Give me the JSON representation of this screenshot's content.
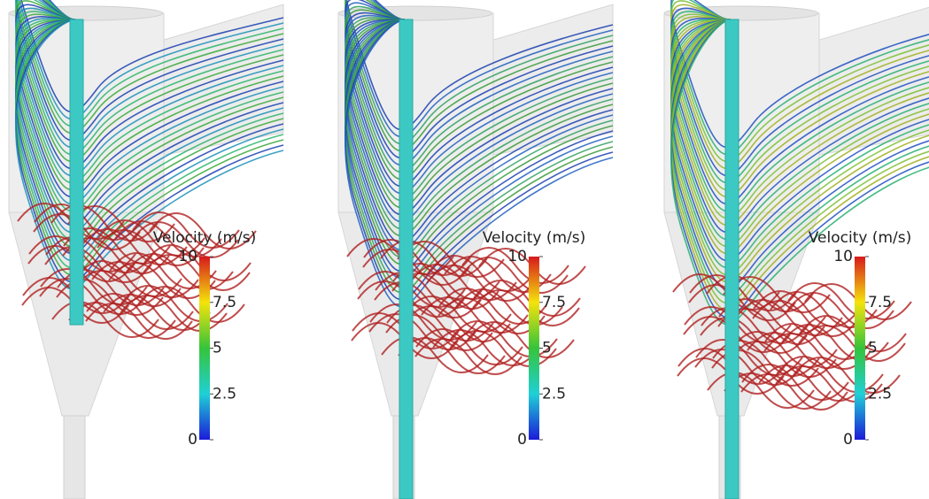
{
  "panels": [
    {
      "legend": {
        "title": "Velocity (m/s)",
        "ticks": [
          10,
          7.5,
          5,
          2.5,
          0
        ]
      }
    },
    {
      "legend": {
        "title": "Velocity (m/s)",
        "ticks": [
          10,
          7.5,
          5,
          2.5,
          0
        ]
      }
    },
    {
      "legend": {
        "title": "Velocity (m/s)",
        "ticks": [
          10,
          7.5,
          5,
          2.5,
          0
        ]
      }
    }
  ]
}
